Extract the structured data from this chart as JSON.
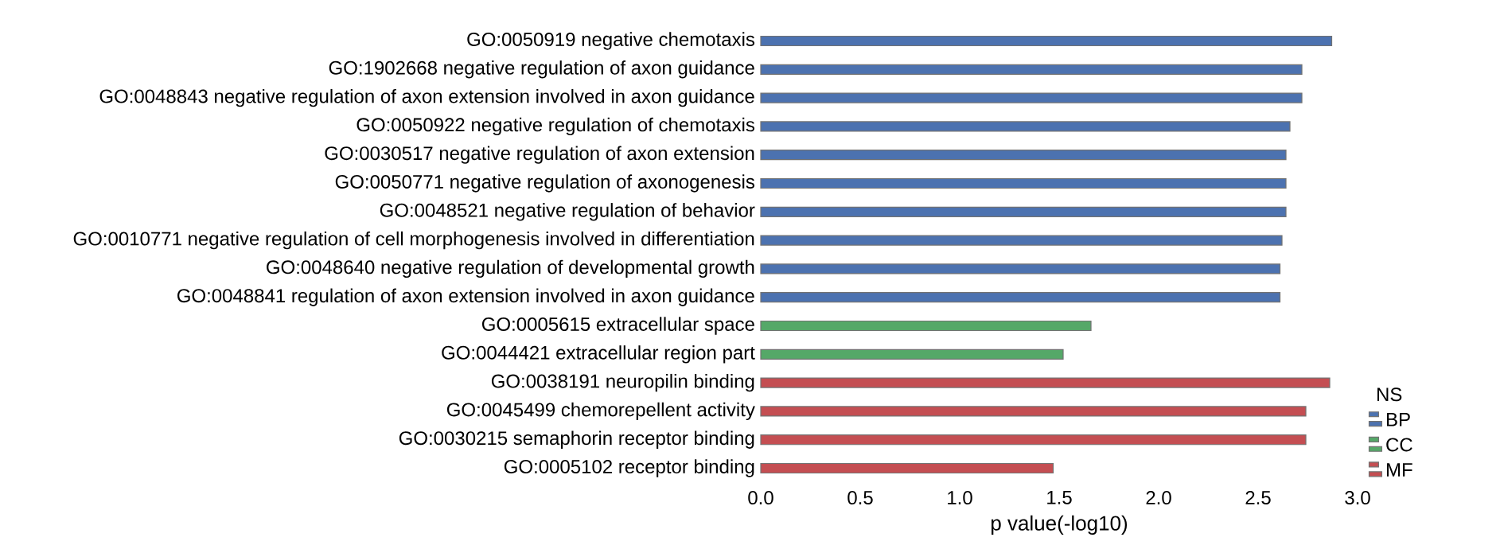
{
  "chart_data": {
    "type": "bar",
    "orientation": "horizontal",
    "categories": [
      "GO:0050919 negative chemotaxis",
      "GO:1902668 negative regulation of axon guidance",
      "GO:0048843 negative regulation of axon extension involved in axon guidance",
      "GO:0050922 negative regulation of chemotaxis",
      "GO:0030517 negative regulation of axon extension",
      "GO:0050771 negative regulation of axonogenesis",
      "GO:0048521 negative regulation of behavior",
      "GO:0010771 negative regulation of cell morphogenesis involved in differentiation",
      "GO:0048640 negative regulation of developmental growth",
      "GO:0048841 regulation of axon extension involved in axon guidance",
      "GO:0005615 extracellular space",
      "GO:0044421 extracellular region part",
      "GO:0038191 neuropilin binding",
      "GO:0045499 chemorepellent activity",
      "GO:0030215 semaphorin receptor binding",
      "GO:0005102 receptor binding"
    ],
    "series": [
      {
        "name": "BP",
        "color": "#4c72b0",
        "values": [
          2.87,
          2.72,
          2.72,
          2.66,
          2.64,
          2.64,
          2.64,
          2.62,
          2.61,
          2.61,
          null,
          null,
          null,
          null,
          null,
          null
        ]
      },
      {
        "name": "CC",
        "color": "#55a868",
        "values": [
          null,
          null,
          null,
          null,
          null,
          null,
          null,
          null,
          null,
          null,
          1.66,
          1.52,
          null,
          null,
          null,
          null
        ]
      },
      {
        "name": "MF",
        "color": "#c44e52",
        "values": [
          null,
          null,
          null,
          null,
          null,
          null,
          null,
          null,
          null,
          null,
          null,
          null,
          2.86,
          2.74,
          2.74,
          1.47
        ]
      }
    ],
    "xlabel": "p value(-log10)",
    "legend_title": "NS",
    "legend": "bottom right",
    "xlim": [
      0,
      3
    ],
    "xticks": [
      {
        "value": 0,
        "label": "0.0"
      },
      {
        "value": 0.5,
        "label": "0.5"
      },
      {
        "value": 1,
        "label": "1.0"
      },
      {
        "value": 1.5,
        "label": "1.5"
      },
      {
        "value": 2,
        "label": "2.0"
      },
      {
        "value": 2.5,
        "label": "2.5"
      },
      {
        "value": 3,
        "label": "3.0"
      }
    ],
    "grid": false
  }
}
